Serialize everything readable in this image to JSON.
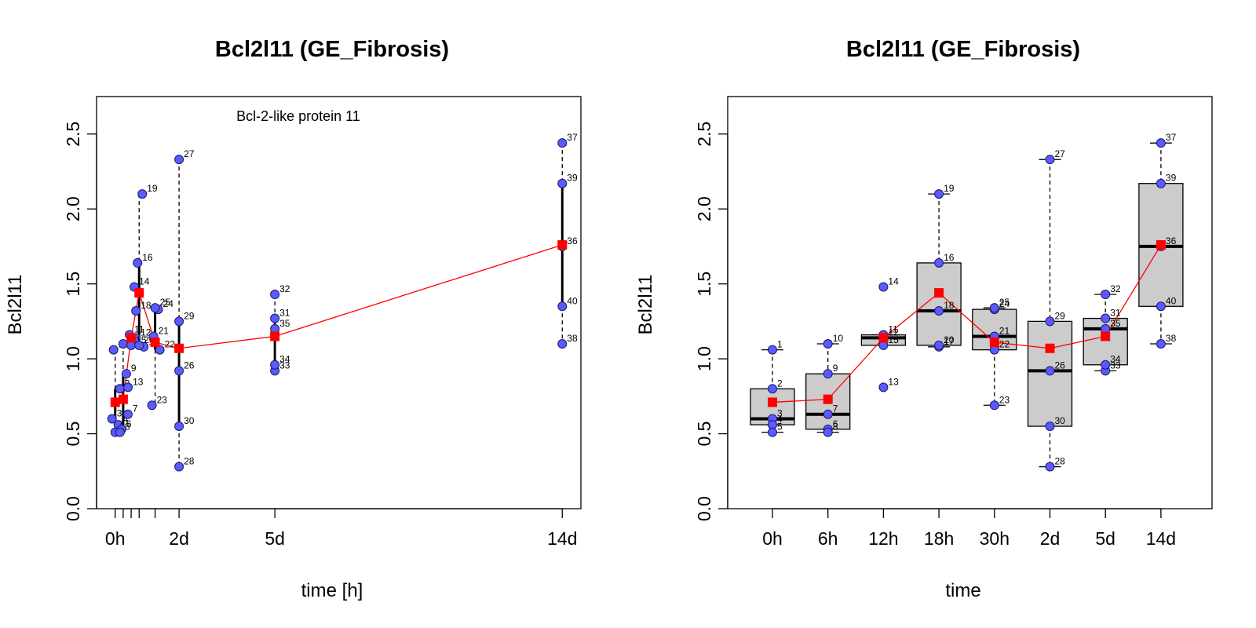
{
  "chart_data": [
    {
      "type": "scatter",
      "title": "Bcl2l11 (GE_Fibrosis)",
      "subtitle": "Bcl-2-like protein 11",
      "xlabel": "time [h]",
      "ylabel": "Bcl2l11",
      "ylim": [
        0,
        2.75
      ],
      "xlim": [
        -14,
        350
      ],
      "yticks": [
        "0.0",
        "0.5",
        "1.0",
        "1.5",
        "2.0",
        "2.5"
      ],
      "xticks": [
        {
          "label": "0h",
          "x": 0
        },
        {
          "label": "",
          "x": 6
        },
        {
          "label": "",
          "x": 12
        },
        {
          "label": "",
          "x": 18
        },
        {
          "label": "",
          "x": 30
        },
        {
          "label": "2d",
          "x": 48
        },
        {
          "label": "5d",
          "x": 120
        },
        {
          "label": "14d",
          "x": 336
        }
      ],
      "groups": [
        {
          "x": 0,
          "ids": [
            "1",
            "2",
            "3",
            "4",
            "5"
          ],
          "values": [
            1.06,
            0.8,
            0.6,
            0.56,
            0.51
          ]
        },
        {
          "x": 6,
          "ids": [
            "6",
            "7",
            "8",
            "9",
            "10"
          ],
          "values": [
            0.53,
            0.63,
            0.51,
            0.9,
            1.1
          ]
        },
        {
          "x": 12,
          "ids": [
            "11",
            "12",
            "13",
            "14",
            "15"
          ],
          "values": [
            1.16,
            1.14,
            0.81,
            1.48,
            1.09
          ]
        },
        {
          "x": 18,
          "ids": [
            "16",
            "17",
            "18",
            "19",
            "20"
          ],
          "values": [
            1.64,
            1.08,
            1.32,
            2.1,
            1.09
          ]
        },
        {
          "x": 30,
          "ids": [
            "21",
            "22",
            "23",
            "24",
            "25"
          ],
          "values": [
            1.15,
            1.06,
            0.69,
            1.33,
            1.34
          ]
        },
        {
          "x": 48,
          "ids": [
            "26",
            "27",
            "28",
            "29",
            "30"
          ],
          "values": [
            0.92,
            2.33,
            0.28,
            1.25,
            0.55
          ]
        },
        {
          "x": 120,
          "ids": [
            "31",
            "32",
            "33",
            "34",
            "35"
          ],
          "values": [
            1.27,
            1.43,
            0.92,
            0.96,
            1.2
          ]
        },
        {
          "x": 336,
          "ids": [
            "36",
            "37",
            "38",
            "39",
            "40"
          ],
          "values": [
            1.75,
            2.44,
            1.1,
            2.17,
            1.35
          ]
        }
      ],
      "means": [
        0.71,
        0.73,
        1.14,
        1.44,
        1.11,
        1.07,
        1.15,
        1.76
      ],
      "colors": {
        "points": "#5a5aff",
        "mean": "#ff0000"
      }
    },
    {
      "type": "box",
      "title": "Bcl2l11 (GE_Fibrosis)",
      "xlabel": "time",
      "ylabel": "Bcl2l11",
      "ylim": [
        0,
        2.75
      ],
      "yticks": [
        "0.0",
        "0.5",
        "1.0",
        "1.5",
        "2.0",
        "2.5"
      ],
      "categories": [
        "0h",
        "6h",
        "12h",
        "18h",
        "30h",
        "2d",
        "5d",
        "14d"
      ],
      "boxes": [
        {
          "min": 0.51,
          "q1": 0.56,
          "median": 0.6,
          "q3": 0.8,
          "max": 1.06
        },
        {
          "min": 0.51,
          "q1": 0.53,
          "median": 0.63,
          "q3": 0.9,
          "max": 1.1
        },
        {
          "min": 1.09,
          "q1": 1.09,
          "median": 1.14,
          "q3": 1.16,
          "max": 1.16
        },
        {
          "min": 1.08,
          "q1": 1.09,
          "median": 1.32,
          "q3": 1.64,
          "max": 2.1
        },
        {
          "min": 0.69,
          "q1": 1.06,
          "median": 1.15,
          "q3": 1.33,
          "max": 1.34
        },
        {
          "min": 0.28,
          "q1": 0.55,
          "median": 0.92,
          "q3": 1.25,
          "max": 2.33
        },
        {
          "min": 0.92,
          "q1": 0.96,
          "median": 1.2,
          "q3": 1.27,
          "max": 1.43
        },
        {
          "min": 1.1,
          "q1": 1.35,
          "median": 1.75,
          "q3": 2.17,
          "max": 2.44
        }
      ],
      "colors": {
        "box": "#cccccc",
        "points": "#5a5aff",
        "mean": "#ff0000"
      }
    }
  ]
}
